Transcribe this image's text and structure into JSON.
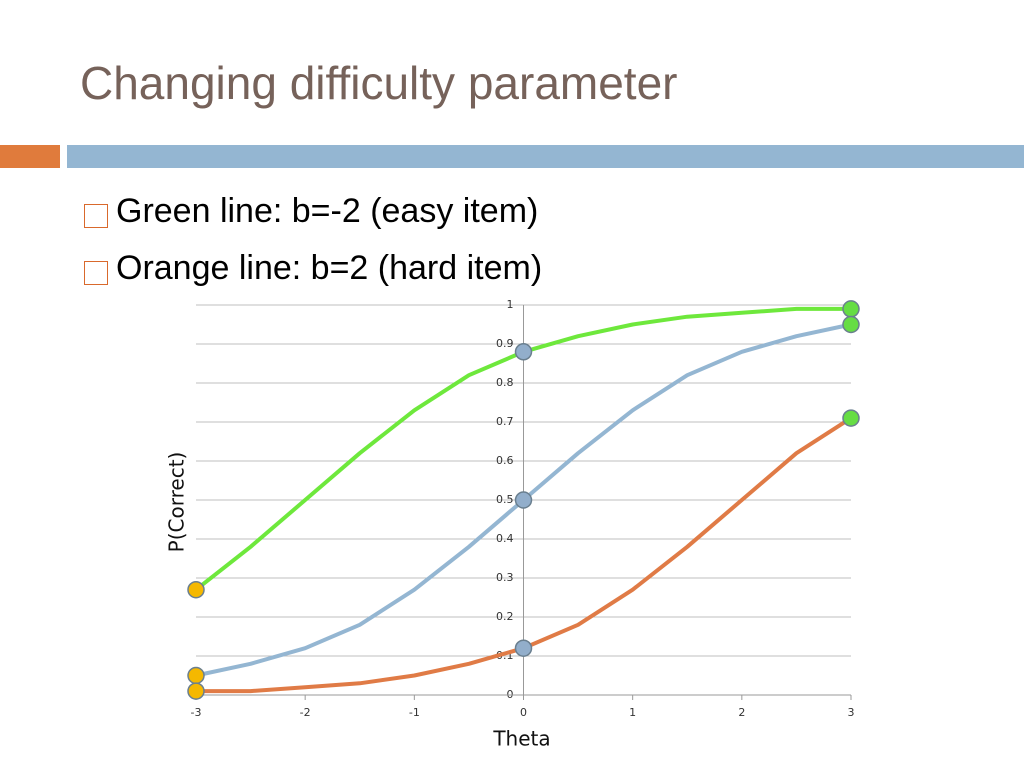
{
  "header": {
    "title": "Changing difficulty parameter"
  },
  "bullets": [
    "Green line: b=-2 (easy item)",
    "Orange line: b=2 (hard item)"
  ],
  "chart_data": {
    "type": "line",
    "x_label": "Theta",
    "y_label": "P(Correct)",
    "x": [
      -3,
      -2.5,
      -2,
      -1.5,
      -1,
      -0.5,
      0,
      0.5,
      1,
      1.5,
      2,
      2.5,
      3
    ],
    "series": [
      {
        "color": "#6ee83c",
        "values": [
          0.27,
          0.38,
          0.5,
          0.62,
          0.73,
          0.82,
          0.88,
          0.92,
          0.95,
          0.97,
          0.98,
          0.99,
          0.99
        ]
      },
      {
        "color": "#94b6d2",
        "values": [
          0.05,
          0.08,
          0.12,
          0.18,
          0.27,
          0.38,
          0.5,
          0.62,
          0.73,
          0.82,
          0.88,
          0.92,
          0.95
        ]
      },
      {
        "color": "#e07b46",
        "values": [
          0.01,
          0.01,
          0.02,
          0.03,
          0.05,
          0.08,
          0.12,
          0.18,
          0.27,
          0.38,
          0.5,
          0.62,
          0.71
        ]
      }
    ],
    "marker_colors": [
      "#f5b800",
      "#92aecb",
      "#66dd44"
    ],
    "xlim": [
      -3,
      3
    ],
    "xticks": [
      -3,
      -2,
      -1,
      0,
      1,
      2,
      3
    ],
    "ylim": [
      0,
      1
    ],
    "yticks": [
      0,
      0.1,
      0.2,
      0.3,
      0.4,
      0.5,
      0.6,
      0.7,
      0.8,
      0.9,
      1
    ],
    "grid": true
  }
}
